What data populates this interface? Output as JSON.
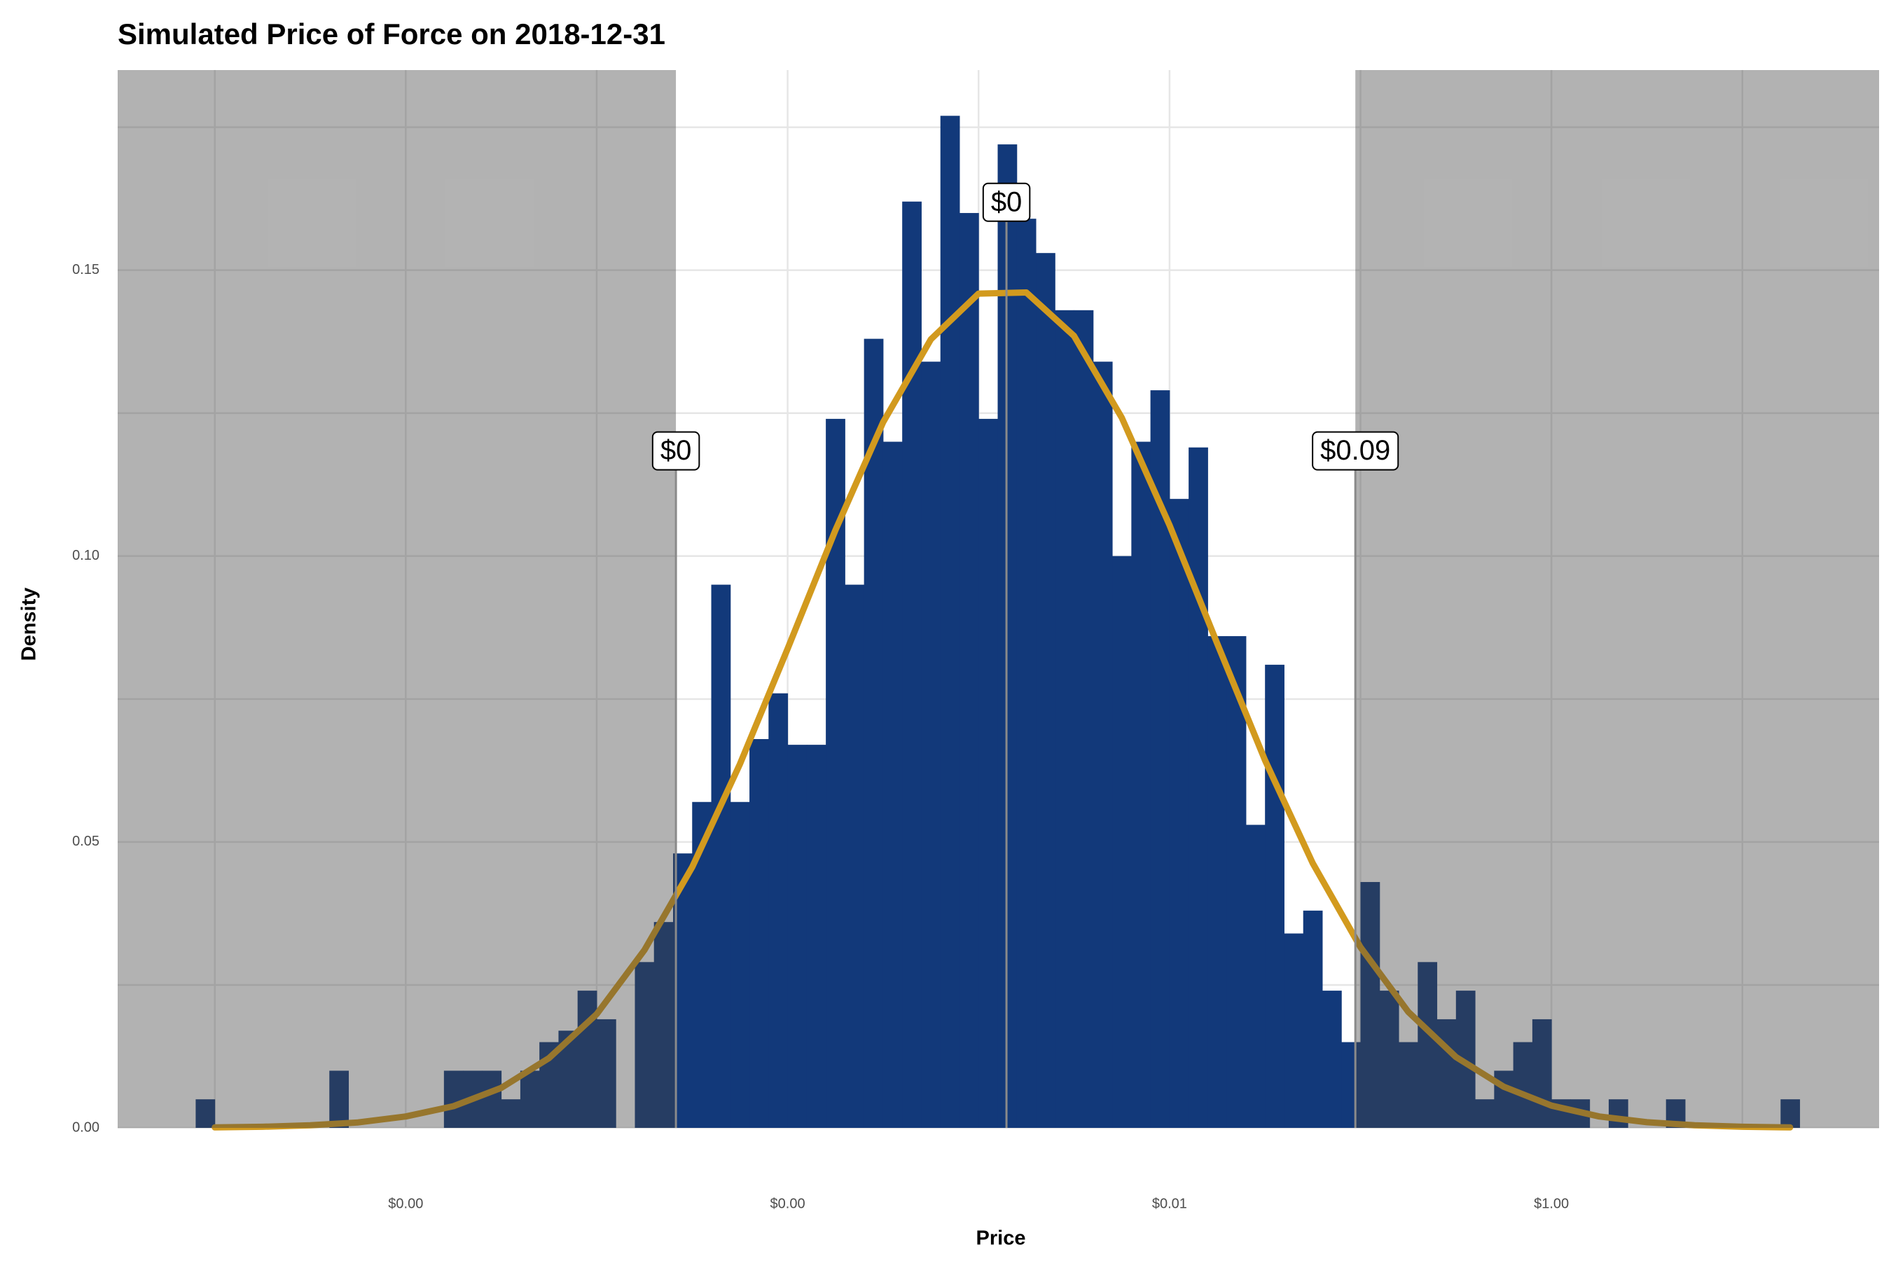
{
  "chart_data": {
    "type": "histogram",
    "title": "Simulated Price of Force on 2018-12-31",
    "xlabel": "Price",
    "ylabel": "Density",
    "log_x": true,
    "xlim": [
      3.1e-08,
      52
    ],
    "xticks": [
      {
        "value": 1e-06,
        "label": "$0.00"
      },
      {
        "value": 0.0001,
        "label": "$0.00"
      },
      {
        "value": 0.01,
        "label": "$0.01"
      },
      {
        "value": 1,
        "label": "$1.00"
      }
    ],
    "xminor_ticks": [
      1e-07,
      1e-05,
      0.001,
      0.1,
      10
    ],
    "ylim": [
      0,
      0.185
    ],
    "yticks": [
      {
        "value": 0,
        "label": "0.00"
      },
      0.05,
      {
        "value": 0.1,
        "label": "0.10"
      },
      0.15
    ],
    "yminor_ticks": [
      0.025,
      0.075,
      0.125,
      0.175
    ],
    "grid": true,
    "color": "#12397a",
    "bins": [
      7.943e-08,
      1e-07,
      1.259e-07,
      1.585e-07,
      1.995e-07,
      2.512e-07,
      3.162e-07,
      3.981e-07,
      5.012e-07,
      6.31e-07,
      7.943e-07,
      1e-06,
      1.259e-06,
      1.585e-06,
      1.995e-06,
      2.512e-06,
      3.162e-06,
      3.981e-06,
      5.012e-06,
      6.31e-06,
      7.943e-06,
      1e-05,
      1.259e-05,
      1.585e-05,
      1.995e-05,
      2.512e-05,
      3.162e-05,
      3.981e-05,
      5.012e-05,
      6.31e-05,
      7.943e-05,
      0.0001,
      0.0001259,
      0.0001585,
      0.0001995,
      0.0002512,
      0.0003162,
      0.0003981,
      0.0005012,
      0.000631,
      0.0007943,
      0.001,
      0.001259,
      0.001585,
      0.001995,
      0.002512,
      0.003162,
      0.003981,
      0.005012,
      0.00631,
      0.007943,
      0.01,
      0.01259,
      0.01585,
      0.01995,
      0.02512,
      0.03162,
      0.03981,
      0.05012,
      0.0631,
      0.07943,
      0.1,
      0.1259,
      0.1585,
      0.1995,
      0.2512,
      0.3162,
      0.3981,
      0.5012,
      0.631,
      0.7943,
      1,
      1.259,
      1.585,
      1.995,
      2.512,
      3.162,
      3.981,
      5.012,
      6.31,
      7.943,
      10,
      12.59,
      15.85,
      19.95
    ],
    "values": [
      0.005,
      0,
      0,
      0,
      0,
      0,
      0,
      0.01,
      0,
      0,
      0,
      0,
      0,
      0.01,
      0.01,
      0.01,
      0.005,
      0.01,
      0.015,
      0.017,
      0.024,
      0.019,
      0,
      0.029,
      0.036,
      0.048,
      0.057,
      0.095,
      0.057,
      0.068,
      0.076,
      0.067,
      0.067,
      0.124,
      0.095,
      0.138,
      0.12,
      0.162,
      0.134,
      0.177,
      0.16,
      0.124,
      0.172,
      0.159,
      0.153,
      0.143,
      0.143,
      0.134,
      0.1,
      0.12,
      0.129,
      0.11,
      0.119,
      0.086,
      0.086,
      0.053,
      0.081,
      0.034,
      0.038,
      0.024,
      0.015,
      0.043,
      0.024,
      0.015,
      0.029,
      0.019,
      0.024,
      0.005,
      0.01,
      0.015,
      0.019,
      0.005,
      0.005,
      0,
      0.005,
      0,
      0,
      0.005,
      0,
      0,
      0,
      0,
      0,
      0.005
    ],
    "curve": {
      "color": "#d29a1e",
      "x": [
        1e-07,
        1.778e-07,
        3.162e-07,
        5.623e-07,
        1e-06,
        1.778e-06,
        3.162e-06,
        5.623e-06,
        1e-05,
        1.778e-05,
        3.162e-05,
        5.623e-05,
        0.0001,
        0.0001778,
        0.0003162,
        0.0005623,
        0.001,
        0.001778,
        0.003162,
        0.005623,
        0.01,
        0.01778,
        0.03162,
        0.05623,
        0.1,
        0.1778,
        0.3162,
        0.5623,
        1,
        1.778,
        3.162,
        5.623,
        10,
        17.78
      ],
      "values": [
        8e-05,
        0.0002,
        0.00045,
        0.00096,
        0.002,
        0.0038,
        0.007,
        0.0122,
        0.0199,
        0.0311,
        0.0456,
        0.0636,
        0.0838,
        0.1045,
        0.1234,
        0.1379,
        0.1459,
        0.1461,
        0.1385,
        0.1242,
        0.1054,
        0.0847,
        0.0643,
        0.0463,
        0.0316,
        0.0203,
        0.0124,
        0.0072,
        0.0039,
        0.002,
        0.00099,
        0.00046,
        0.0002,
        8e-05
      ]
    },
    "shade_outside": true,
    "annotations": [
      {
        "value": 2.6e-05,
        "label": "$0"
      },
      {
        "value": 0.0014,
        "label": "$0"
      },
      {
        "value": 0.094,
        "label": "$0.09"
      }
    ]
  }
}
